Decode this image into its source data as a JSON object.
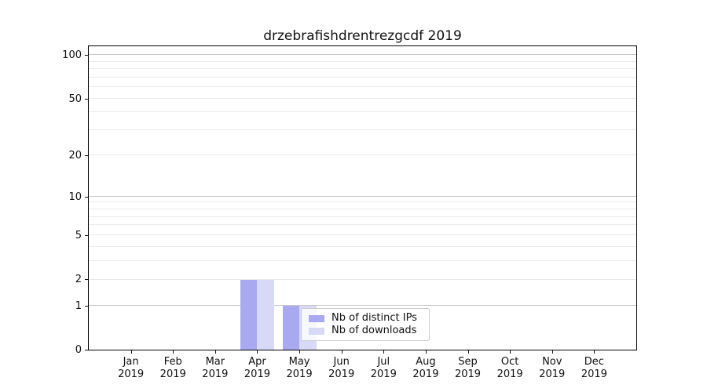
{
  "chart_data": {
    "type": "bar",
    "title": "drzebrafishdrentrezgcdf 2019",
    "categories": [
      "Jan",
      "Feb",
      "Mar",
      "Apr",
      "May",
      "Jun",
      "Jul",
      "Aug",
      "Sep",
      "Oct",
      "Nov",
      "Dec"
    ],
    "x_tick_year": "2019",
    "series": [
      {
        "name": "Nb of distinct IPs",
        "color": "#a9a9f1",
        "values": [
          0,
          0,
          0,
          2,
          1,
          0,
          0,
          0,
          0,
          0,
          0,
          0
        ]
      },
      {
        "name": "Nb of downloads",
        "color": "#d8d8f7",
        "values": [
          0,
          0,
          0,
          2,
          1,
          0,
          0,
          0,
          0,
          0,
          0,
          0
        ]
      }
    ],
    "yscale": "log1p",
    "ylim": [
      0,
      114
    ],
    "y_labeled_ticks": [
      0,
      1,
      2,
      5,
      10,
      20,
      50,
      100
    ],
    "y_major_gridlines": [
      1,
      10,
      100
    ],
    "y_minor_gridlines": [
      2,
      3,
      4,
      5,
      6,
      7,
      8,
      9,
      20,
      30,
      40,
      50,
      60,
      70,
      80,
      90
    ],
    "grid": true,
    "legend_position": "lower center"
  }
}
